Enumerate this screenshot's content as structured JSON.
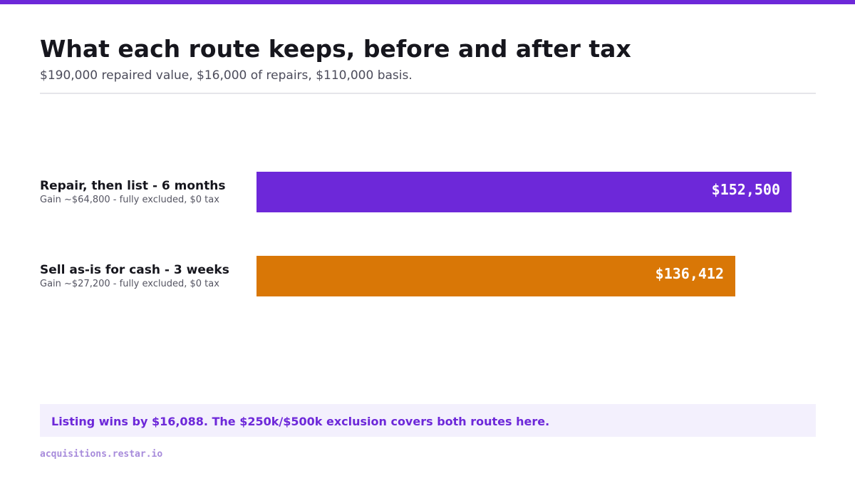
{
  "header": {
    "title": "What each route keeps, before and after tax",
    "subtitle": "$190,000 repaired value, $16,000 of repairs, $110,000 basis."
  },
  "chart_data": {
    "type": "bar",
    "orientation": "horizontal",
    "title": "What each route keeps, before and after tax",
    "subtitle": "$190,000 repaired value, $16,000 of repairs, $110,000 basis.",
    "categories": [
      "Repair, then list - 6 months",
      "Sell as-is for cash - 3 weeks"
    ],
    "notes": [
      "Gain ~$64,800 - fully excluded, $0 tax",
      "Gain ~$27,200 - fully excluded, $0 tax"
    ],
    "values": [
      152500,
      136412
    ],
    "value_labels": [
      "$152,500",
      "$136,412"
    ],
    "colors": [
      "#6d28d9",
      "#d97706"
    ],
    "xlim": [
      0,
      152500
    ],
    "grid": false,
    "legend": "none"
  },
  "callout": {
    "text": "Listing wins by $16,088. The $250k/$500k exclusion covers both routes here."
  },
  "footer": {
    "text": "acquisitions.restar.io"
  },
  "colors": {
    "accent": "#6d28d9",
    "secondary": "#d97706",
    "callout_bg": "#f3f0fd"
  }
}
